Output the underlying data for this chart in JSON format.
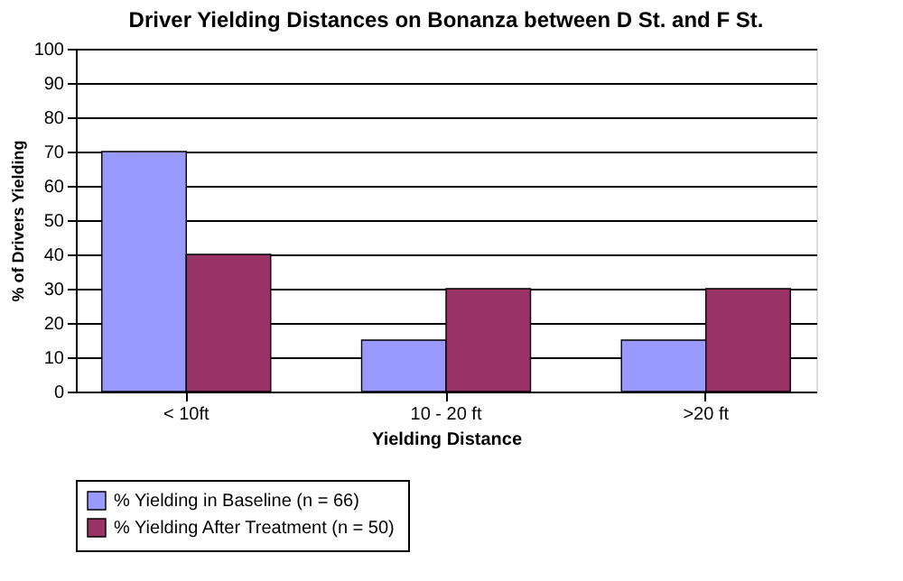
{
  "chart_data": {
    "type": "bar",
    "title": "Driver Yielding Distances on Bonanza between D St. and F St.",
    "xlabel": "Yielding Distance",
    "ylabel": "% of Drivers Yielding",
    "categories": [
      "<  10ft",
      "10 - 20 ft",
      ">20 ft"
    ],
    "series": [
      {
        "name": "% Yielding in Baseline (n = 66)",
        "color": "#9999ff",
        "values": [
          70,
          15,
          15
        ]
      },
      {
        "name": "% Yielding After Treatment (n = 50)",
        "color": "#993366",
        "values": [
          40,
          30,
          30
        ]
      }
    ],
    "ylim": [
      0,
      100
    ],
    "yticks": [
      0,
      10,
      20,
      30,
      40,
      50,
      60,
      70,
      80,
      90,
      100
    ],
    "grid": "y",
    "legend": "bottom"
  }
}
